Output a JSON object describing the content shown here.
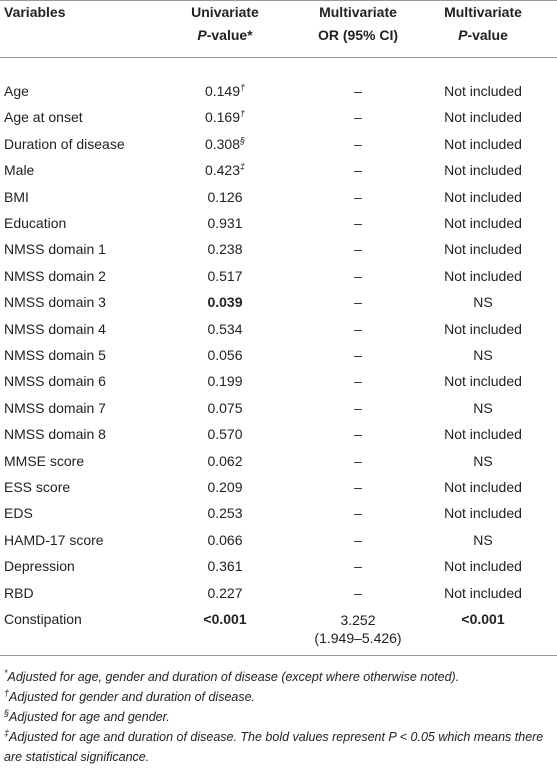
{
  "header": {
    "variables": "Variables",
    "univariate": [
      "Univariate",
      "P",
      "-value*"
    ],
    "multivariate_or": [
      "Multivariate",
      "OR (95% CI)"
    ],
    "multivariate_p": [
      "Multivariate",
      "P",
      "-value"
    ]
  },
  "table": {
    "rows": [
      {
        "variable": "Age",
        "p": "0.149",
        "p_mark": "†",
        "or": "–",
        "mp": "Not included"
      },
      {
        "variable": "Age at onset",
        "p": "0.169",
        "p_mark": "†",
        "or": "–",
        "mp": "Not included"
      },
      {
        "variable": "Duration of disease",
        "p": "0.308",
        "p_mark": "§",
        "or": "–",
        "mp": "Not included"
      },
      {
        "variable": "Male",
        "p": "0.423",
        "p_mark": "‡",
        "or": "–",
        "mp": "Not included"
      },
      {
        "variable": "BMI",
        "p": "0.126",
        "or": "–",
        "mp": "Not included"
      },
      {
        "variable": "Education",
        "p": "0.931",
        "or": "–",
        "mp": "Not included"
      },
      {
        "variable": "NMSS domain 1",
        "p": "0.238",
        "or": "–",
        "mp": "Not included"
      },
      {
        "variable": "NMSS domain 2",
        "p": "0.517",
        "or": "–",
        "mp": "Not included"
      },
      {
        "variable": "NMSS domain 3",
        "p": "0.039",
        "p_bold": true,
        "or": "–",
        "mp": "NS"
      },
      {
        "variable": "NMSS domain 4",
        "p": "0.534",
        "or": "–",
        "mp": "Not included"
      },
      {
        "variable": "NMSS domain 5",
        "p": "0.056",
        "or": "–",
        "mp": "NS"
      },
      {
        "variable": "NMSS domain 6",
        "p": "0.199",
        "or": "–",
        "mp": "Not included"
      },
      {
        "variable": "NMSS domain 7",
        "p": "0.075",
        "or": "–",
        "mp": "NS"
      },
      {
        "variable": "NMSS domain 8",
        "p": "0.570",
        "or": "–",
        "mp": "Not included"
      },
      {
        "variable": "MMSE score",
        "p": "0.062",
        "or": "–",
        "mp": "NS"
      },
      {
        "variable": "ESS score",
        "p": "0.209",
        "or": "–",
        "mp": "Not included"
      },
      {
        "variable": "EDS",
        "p": "0.253",
        "or": "–",
        "mp": "Not included"
      },
      {
        "variable": "HAMD-17 score",
        "p": "0.066",
        "or": "–",
        "mp": "NS"
      },
      {
        "variable": "Depression",
        "p": "0.361",
        "or": "–",
        "mp": "Not included"
      },
      {
        "variable": "RBD",
        "p": "0.227",
        "or": "–",
        "mp": "Not included"
      },
      {
        "variable": "Constipation",
        "p": "<0.001",
        "p_bold": true,
        "or": "3.252",
        "or_ci": "(1.949–5.426)",
        "mp": "<0.001",
        "mp_bold": true
      }
    ]
  },
  "footnotes": [
    {
      "mark": "*",
      "text": "Adjusted for age, gender and duration of disease (except where otherwise noted)."
    },
    {
      "mark": "†",
      "text": "Adjusted for gender and duration of disease."
    },
    {
      "mark": "§",
      "text": "Adjusted for age and gender."
    },
    {
      "mark": "‡",
      "text": "Adjusted for age and duration of disease. The bold values represent P < 0.05 which means there are statistical significance."
    }
  ]
}
